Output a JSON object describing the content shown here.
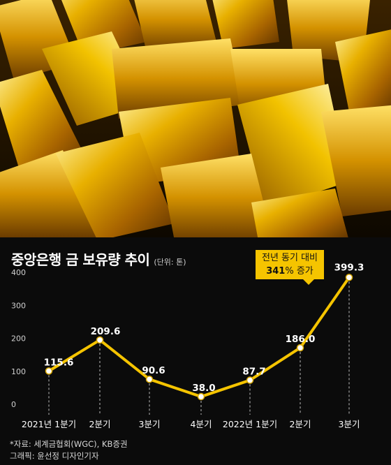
{
  "chart_data": {
    "type": "line",
    "title": "중앙은행 금 보유량 추이",
    "unit": "(단위: 톤)",
    "categories": [
      "2021년 1분기",
      "2분기",
      "3분기",
      "4분기",
      "2022년 1분기",
      "2분기",
      "3분기"
    ],
    "series": [
      {
        "values": [
          115.6,
          209.6,
          90.6,
          38.0,
          87.7,
          186.0,
          399.3
        ]
      }
    ],
    "value_labels": [
      "115.6",
      "209.6",
      "90.6",
      "38.0",
      "87.7",
      "186.0",
      "399.3"
    ],
    "yticks": [
      "0",
      "100",
      "200",
      "300",
      "400"
    ],
    "ylim": [
      0,
      400
    ],
    "grid": "dashed vertical guides",
    "line_color": "#f5c400",
    "annotation": {
      "line1": "전년 동기 대비",
      "bold": "341",
      "line2_rest": "% 증가"
    }
  },
  "source_line": "*자료: 세계금협회(WGC), KB증권",
  "credit_line": "그래픽: 윤선정 디자인기자"
}
